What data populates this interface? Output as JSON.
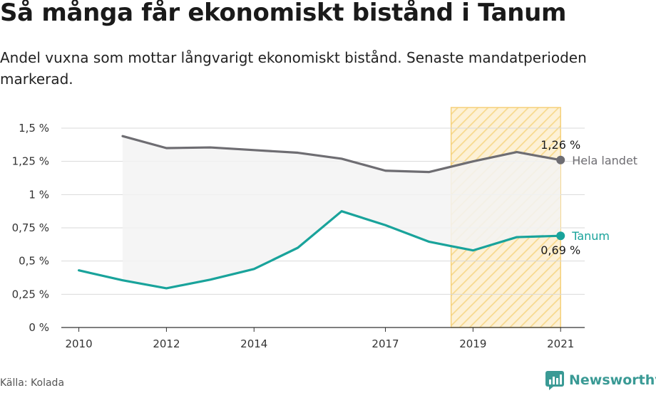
{
  "title": "Så många får ekonomiskt bistånd i Tanum",
  "subtitle": "Andel vuxna som mottar långvarigt ekonomiskt bistånd. Senaste mandatperioden markerad.",
  "source": "Källa: Kolada",
  "brand": "Newsworthy",
  "colors": {
    "national": "#6e6d72",
    "tanum": "#19a39b",
    "highlight_fill": "#fde9bf",
    "highlight_stroke": "#f5d07a",
    "area": "#f3f3f3"
  },
  "chart_data": {
    "type": "line",
    "title": "Så många får ekonomiskt bistånd i Tanum",
    "x": [
      2010,
      2011,
      2012,
      2013,
      2014,
      2015,
      2016,
      2017,
      2018,
      2019,
      2020,
      2021
    ],
    "xlim": [
      2009.6,
      2021.55
    ],
    "ylim": [
      0,
      1.5
    ],
    "x_ticks": [
      {
        "value": 2010,
        "label": "2010"
      },
      {
        "value": 2012,
        "label": "2012"
      },
      {
        "value": 2014,
        "label": "2014"
      },
      {
        "value": 2017,
        "label": "2017"
      },
      {
        "value": 2019,
        "label": "2019"
      },
      {
        "value": 2021,
        "label": "2021"
      }
    ],
    "y_ticks": [
      {
        "value": 0,
        "label": "0 %"
      },
      {
        "value": 0.25,
        "label": "0,25 %"
      },
      {
        "value": 0.5,
        "label": "0,5 %"
      },
      {
        "value": 0.75,
        "label": "0,75 %"
      },
      {
        "value": 1,
        "label": "1 %"
      },
      {
        "value": 1.25,
        "label": "1,25 %"
      },
      {
        "value": 1.5,
        "label": "1,5 %"
      }
    ],
    "grid": true,
    "highlight_period": [
      2018.5,
      2021
    ],
    "series": [
      {
        "name": "Hela landet",
        "color": "#6e6d72",
        "values": [
          null,
          1.44,
          1.35,
          1.355,
          1.335,
          1.315,
          1.27,
          1.18,
          1.17,
          1.25,
          1.32,
          1.26
        ],
        "end_label": "1,26 %"
      },
      {
        "name": "Tanum",
        "color": "#19a39b",
        "values": [
          0.43,
          0.355,
          0.295,
          0.36,
          0.44,
          0.6,
          0.875,
          0.77,
          0.645,
          0.58,
          0.68,
          0.69
        ],
        "end_label": "0,69 %"
      }
    ]
  }
}
